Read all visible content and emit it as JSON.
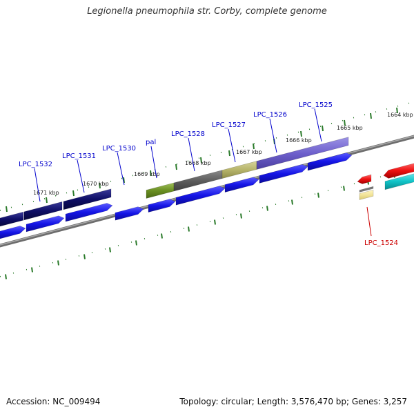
{
  "title": "Legionella pneumophila str. Corby, complete genome",
  "accession": "Accession: NC_009494",
  "summary": "Topology: circular; Length: 3,576,470 bp; Genes: 3,257",
  "colors": {
    "forward_label": "#0000cc",
    "reverse_label": "#cc0000",
    "tick": "#2a7a2a",
    "backbone": "#888888",
    "cds_forward": "#1414e6",
    "cds_reverse": "#ee1111",
    "cds_reverse_teal": "#11c4c8"
  },
  "ticks": [
    {
      "label": "1671 kbp"
    },
    {
      "label": "1670 kbp"
    },
    {
      "label": "1669 kbp"
    },
    {
      "label": "1668 kbp"
    },
    {
      "label": "1667 kbp"
    },
    {
      "label": "1666 kbp"
    },
    {
      "label": "1665 kbp"
    },
    {
      "label": "1664 kbp"
    }
  ],
  "genes": [
    {
      "label": "LPC_1532",
      "strand": "forward"
    },
    {
      "label": "LPC_1531",
      "strand": "forward"
    },
    {
      "label": "LPC_1530",
      "strand": "forward"
    },
    {
      "label": "pal",
      "strand": "forward"
    },
    {
      "label": "LPC_1528",
      "strand": "forward"
    },
    {
      "label": "LPC_1527",
      "strand": "forward"
    },
    {
      "label": "LPC_1526",
      "strand": "forward"
    },
    {
      "label": "LPC_1525",
      "strand": "forward"
    },
    {
      "label": "LPC_1524",
      "strand": "reverse"
    }
  ]
}
